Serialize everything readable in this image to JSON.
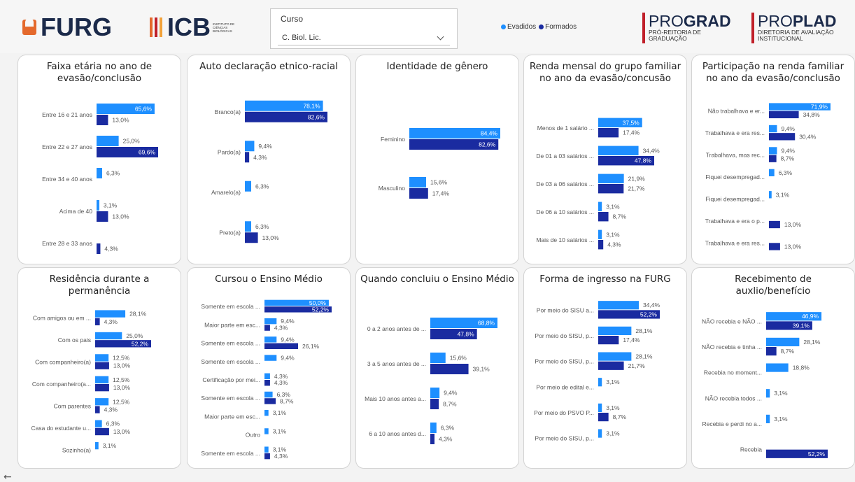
{
  "header": {
    "furg": "FURG",
    "icb": "ICB",
    "icb_sub": "INSTITUTO DE CIÊNCIAS BIOLÓGICAS",
    "slicer_label": "Curso",
    "slicer_value": "C. Biol. Lic.",
    "legend": [
      {
        "name": "Evadidos",
        "color": "#1e8fff"
      },
      {
        "name": "Formados",
        "color": "#1a2ba0"
      }
    ],
    "prograd": {
      "pre": "PRO",
      "bold": "GRAD",
      "sub": "PRÓ-REITORIA DE GRADUAÇÃO",
      "color": "#c0202a"
    },
    "proplad": {
      "pre": "PRO",
      "bold": "PLAD",
      "sub": "DIRETORIA DE AVALIAÇÃO INSTITUCIONAL",
      "color": "#c0202a"
    },
    "icb_colors": [
      "#e4692c",
      "#c0202a",
      "#f2a23a"
    ]
  },
  "colors": {
    "evadidos": "#1e8fff",
    "formados": "#1a2ba0"
  },
  "chart_data": [
    {
      "type": "bar",
      "orientation": "horizontal",
      "title": "Faixa etária no ano de evasão/conclusão",
      "categories": [
        "Entre 16 e 21 anos",
        "Entre 22 e 27 anos",
        "Entre 34 e 40 anos",
        "Acima de 40",
        "Entre 28 e 33 anos"
      ],
      "series": [
        {
          "name": "Evadidos",
          "values": [
            65.6,
            25.0,
            6.3,
            3.1,
            null
          ]
        },
        {
          "name": "Formados",
          "values": [
            13.0,
            69.6,
            null,
            13.0,
            4.3
          ]
        }
      ]
    },
    {
      "type": "bar",
      "orientation": "horizontal",
      "title": "Auto declaração etnico-racial",
      "categories": [
        "Branco(a)",
        "Pardo(a)",
        "Amarelo(a)",
        "Preto(a)"
      ],
      "series": [
        {
          "name": "Evadidos",
          "values": [
            78.1,
            9.4,
            6.3,
            6.3
          ]
        },
        {
          "name": "Formados",
          "values": [
            82.6,
            4.3,
            null,
            13.0
          ]
        }
      ]
    },
    {
      "type": "bar",
      "orientation": "horizontal",
      "title": "Identidade de gênero",
      "categories": [
        "Feminino",
        "Masculino"
      ],
      "series": [
        {
          "name": "Evadidos",
          "values": [
            84.4,
            15.6
          ]
        },
        {
          "name": "Formados",
          "values": [
            82.6,
            17.4
          ]
        }
      ]
    },
    {
      "type": "bar",
      "orientation": "horizontal",
      "title": "Renda mensal do grupo familiar no ano da evasão/concusão",
      "categories": [
        "Menos de 1 salário ...",
        "De 01 a 03 salários ...",
        "De 03 a 06 salários ...",
        "De 06 a 10 salários ...",
        "Mais de 10 salários ..."
      ],
      "series": [
        {
          "name": "Evadidos",
          "values": [
            37.5,
            34.4,
            21.9,
            3.1,
            3.1
          ]
        },
        {
          "name": "Formados",
          "values": [
            17.4,
            47.8,
            21.7,
            8.7,
            4.3
          ]
        }
      ]
    },
    {
      "type": "bar",
      "orientation": "horizontal",
      "title": "Participação na renda familiar no ano da evasão/conclusão",
      "categories": [
        "Não trabalhava e er...",
        "Trabalhava e era res...",
        "Trabalhava, mas rec...",
        "Fiquei desempregad...",
        "Fiquei desempregad...",
        "Trabalhava e era o p...",
        "Trabalhava e era res..."
      ],
      "series": [
        {
          "name": "Evadidos",
          "values": [
            71.9,
            9.4,
            9.4,
            6.3,
            3.1,
            null,
            null
          ]
        },
        {
          "name": "Formados",
          "values": [
            34.8,
            30.4,
            8.7,
            null,
            null,
            13.0,
            13.0
          ]
        }
      ]
    },
    {
      "type": "bar",
      "orientation": "horizontal",
      "title": "Residência durante a permanência",
      "categories": [
        "Com amigos ou em ...",
        "Com os pais",
        "Com companheiro(a)",
        "Com companheiro(a...",
        "Com parentes",
        "Casa do estudante u...",
        "Sozinho(a)"
      ],
      "series": [
        {
          "name": "Evadidos",
          "values": [
            28.1,
            25.0,
            12.5,
            12.5,
            12.5,
            6.3,
            3.1
          ]
        },
        {
          "name": "Formados",
          "values": [
            4.3,
            52.2,
            13.0,
            13.0,
            4.3,
            13.0,
            null
          ]
        }
      ]
    },
    {
      "type": "bar",
      "orientation": "horizontal",
      "title": "Cursou o Ensino Médio",
      "categories": [
        "Somente em escola ...",
        "Maior parte em esc...",
        "Somente em escola ...",
        "Somente em escola ...",
        "Certificação por mei...",
        "Somente em escola ...",
        "Maior parte em esc...",
        "Outro",
        "Somente em escola ..."
      ],
      "series": [
        {
          "name": "Evadidos",
          "values": [
            50.0,
            9.4,
            9.4,
            9.4,
            4.3,
            6.3,
            3.1,
            3.1,
            3.1
          ]
        },
        {
          "name": "Formados",
          "values": [
            52.2,
            4.3,
            26.1,
            null,
            4.3,
            8.7,
            null,
            null,
            4.3
          ]
        }
      ]
    },
    {
      "type": "bar",
      "orientation": "horizontal",
      "title": "Quando concluiu o Ensino Médio",
      "categories": [
        "0 a 2 anos antes de ...",
        "3 a 5 anos antes de ...",
        "Mais 10 anos antes a...",
        "6 a 10 anos antes d..."
      ],
      "series": [
        {
          "name": "Evadidos",
          "values": [
            68.8,
            15.6,
            9.4,
            6.3
          ]
        },
        {
          "name": "Formados",
          "values": [
            47.8,
            39.1,
            8.7,
            4.3
          ]
        }
      ]
    },
    {
      "type": "bar",
      "orientation": "horizontal",
      "title": "Forma de ingresso na FURG",
      "categories": [
        "Por meio do SISU a...",
        "Por meio do SISU, p...",
        "Por meio do SISU, p...",
        "Por meio de edital e...",
        "Por meio do PSVO P...",
        "Por meio do SISU, p..."
      ],
      "series": [
        {
          "name": "Evadidos",
          "values": [
            34.4,
            28.1,
            28.1,
            3.1,
            3.1,
            3.1
          ]
        },
        {
          "name": "Formados",
          "values": [
            52.2,
            17.4,
            21.7,
            null,
            8.7,
            null
          ]
        }
      ]
    },
    {
      "type": "bar",
      "orientation": "horizontal",
      "title": "Recebimento de auxlio/benefício",
      "categories": [
        "NÃO recebia e NÃO ...",
        "NÃO recebia e tinha ...",
        "Recebia no moment...",
        "NÃO recebia todos ...",
        "Recebia e perdi no a...",
        "Recebia"
      ],
      "series": [
        {
          "name": "Evadidos",
          "values": [
            46.9,
            28.1,
            18.8,
            3.1,
            3.1,
            null
          ]
        },
        {
          "name": "Formados",
          "values": [
            39.1,
            8.7,
            null,
            null,
            null,
            52.2
          ]
        }
      ]
    }
  ]
}
